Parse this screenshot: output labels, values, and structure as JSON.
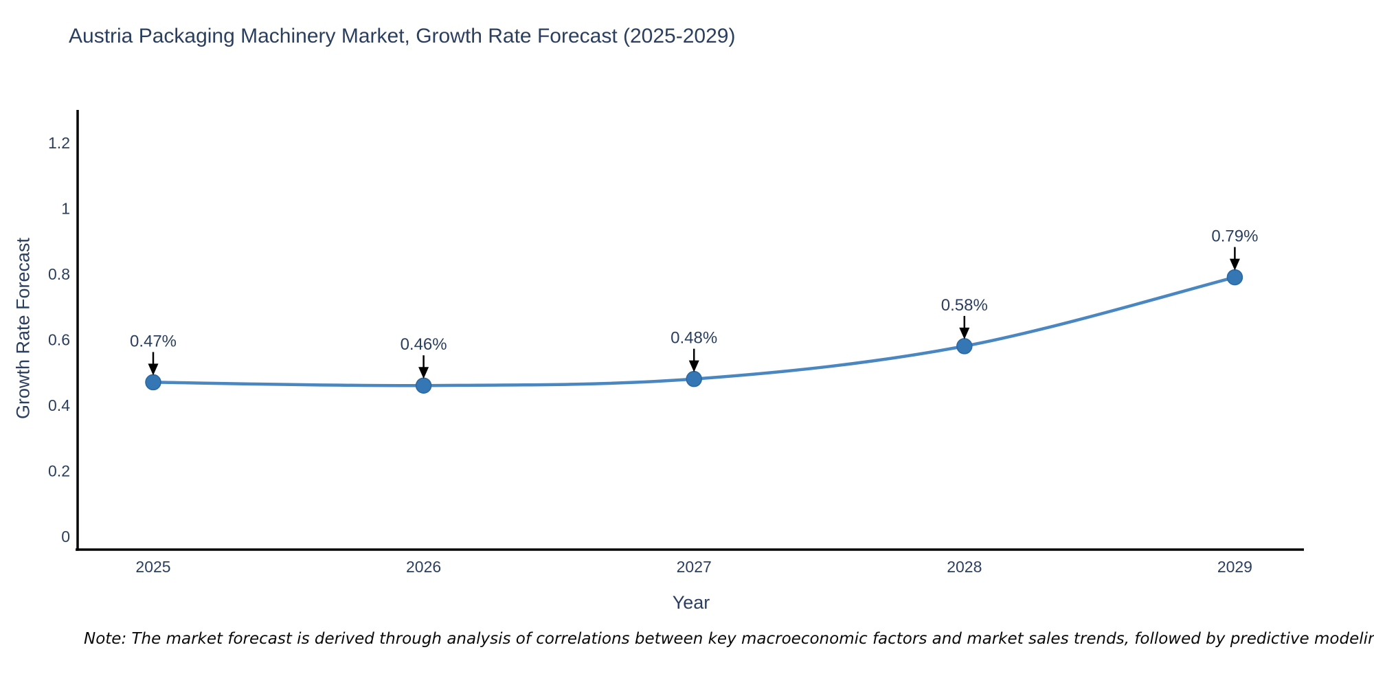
{
  "chart_data": {
    "type": "line",
    "title": "Austria Packaging Machinery Market, Growth Rate Forecast (2025-2029)",
    "xlabel": "Year",
    "ylabel": "Growth Rate Forecast",
    "x": [
      "2025",
      "2026",
      "2027",
      "2028",
      "2029"
    ],
    "y": [
      0.47,
      0.46,
      0.48,
      0.58,
      0.79
    ],
    "point_labels": [
      "0.47%",
      "0.46%",
      "0.48%",
      "0.58%",
      "0.79%"
    ],
    "yticks": [
      0,
      0.2,
      0.4,
      0.6,
      0.8,
      1,
      1.2
    ],
    "ylim": [
      -0.04,
      1.3
    ],
    "grid": false,
    "legend": false,
    "line_shape": "spline",
    "line_color": "#4a86c0",
    "marker_color": "#3577b4",
    "marker_edge_color": "#2a67a0",
    "annotation_arrow_color": "#000000",
    "axis_line_color": "#000000",
    "tick_color": "#2a3f5f",
    "annotation_text_color": "#2a3f5f"
  },
  "note": "Note: The market forecast is derived through analysis of correlations between key macroeconomic factors and market sales trends, followed by predictive modeling to project future sales"
}
